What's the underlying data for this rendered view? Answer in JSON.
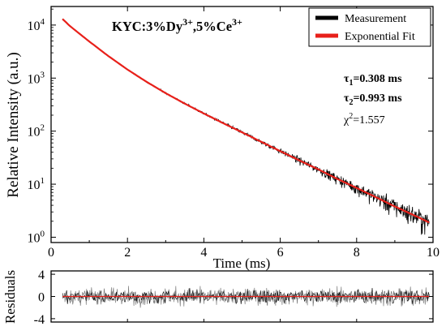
{
  "chart_data": [
    {
      "type": "line",
      "title": "KYC:3%Dy3+,5%Ce3+",
      "title_parts": {
        "base": "KYC:3%Dy",
        "sup1": "3+",
        "mid": ",5%Ce",
        "sup2": "3+"
      },
      "xlabel": "Time (ms)",
      "ylabel": "Relative Intensity (a.u.)",
      "xlim": [
        0,
        10
      ],
      "ylim_log10": [
        -0.1,
        4.35
      ],
      "y_scale": "log",
      "xticks": [
        0,
        2,
        4,
        6,
        8,
        10
      ],
      "yticks": [
        {
          "base": "10",
          "exp": "0",
          "value": 1
        },
        {
          "base": "10",
          "exp": "1",
          "value": 10
        },
        {
          "base": "10",
          "exp": "2",
          "value": 100
        },
        {
          "base": "10",
          "exp": "3",
          "value": 1000
        },
        {
          "base": "10",
          "exp": "4",
          "value": 10000
        }
      ],
      "legend_position": "top-right",
      "series": [
        {
          "name": "Measurement",
          "color": "#000000",
          "x": [
            0.3,
            0.5,
            1.0,
            1.5,
            2.0,
            2.5,
            3.0,
            3.5,
            4.0,
            4.5,
            5.0,
            5.5,
            6.0,
            6.5,
            7.0,
            7.5,
            8.0,
            8.5,
            9.0,
            9.5,
            9.9
          ],
          "y": [
            13000,
            9500,
            4900,
            2600,
            1450,
            850,
            520,
            330,
            215,
            142,
            95,
            63,
            42,
            28,
            19,
            12.5,
            8.5,
            5.7,
            3.8,
            2.6,
            1.9
          ]
        },
        {
          "name": "Exponential Fit",
          "color": "#e8201a",
          "x": [
            0.3,
            0.5,
            1.0,
            1.5,
            2.0,
            2.5,
            3.0,
            3.5,
            4.0,
            4.5,
            5.0,
            5.5,
            6.0,
            6.5,
            7.0,
            7.5,
            8.0,
            8.5,
            9.0,
            9.5,
            9.9
          ],
          "y": [
            13000,
            9500,
            4900,
            2600,
            1450,
            850,
            520,
            330,
            215,
            142,
            95,
            63,
            42,
            28,
            19,
            12.5,
            8.5,
            5.7,
            3.8,
            2.6,
            1.9
          ]
        }
      ],
      "annotations": [
        {
          "sym": "τ",
          "sub": "1",
          "text": "=0.308 ms",
          "bold": true
        },
        {
          "sym": "τ",
          "sub": "2",
          "text": "=0.993 ms",
          "bold": true
        },
        {
          "sym": "χ",
          "sup": "2",
          "text": "=1.557",
          "bold": false
        }
      ]
    },
    {
      "type": "line",
      "title": "",
      "xlabel": "",
      "ylabel": "Residuals",
      "xlim": [
        0,
        10
      ],
      "ylim": [
        -4.6,
        4.6
      ],
      "yticks": [
        4,
        0,
        -4
      ],
      "series": [
        {
          "name": "",
          "color": "#000000",
          "x": [
            0.3,
            9.9
          ],
          "y": [
            0,
            0
          ]
        },
        {
          "name": "",
          "color": "#e8201a",
          "x": [
            0.3,
            9.9
          ],
          "y": [
            0,
            0
          ]
        }
      ]
    }
  ],
  "colors": {
    "data": "#000000",
    "fit": "#e8201a",
    "noise_tail": "#7a7a7a"
  }
}
